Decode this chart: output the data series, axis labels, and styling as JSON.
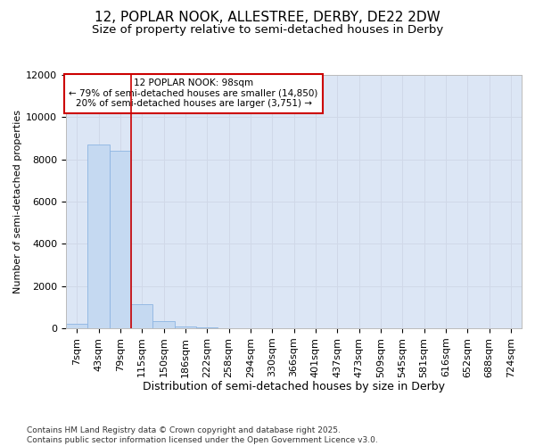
{
  "title1": "12, POPLAR NOOK, ALLESTREE, DERBY, DE22 2DW",
  "title2": "Size of property relative to semi-detached houses in Derby",
  "xlabel": "Distribution of semi-detached houses by size in Derby",
  "ylabel": "Number of semi-detached properties",
  "categories": [
    "7sqm",
    "43sqm",
    "79sqm",
    "115sqm",
    "150sqm",
    "186sqm",
    "222sqm",
    "258sqm",
    "294sqm",
    "330sqm",
    "366sqm",
    "401sqm",
    "437sqm",
    "473sqm",
    "509sqm",
    "545sqm",
    "581sqm",
    "616sqm",
    "652sqm",
    "688sqm",
    "724sqm"
  ],
  "values": [
    200,
    8700,
    8400,
    1150,
    350,
    100,
    50,
    0,
    0,
    0,
    0,
    0,
    0,
    0,
    0,
    0,
    0,
    0,
    0,
    0,
    0
  ],
  "bar_color": "#c5d9f1",
  "bar_edge_color": "#8db4e2",
  "property_line_x": 2.5,
  "annotation_text": "12 POPLAR NOOK: 98sqm\n← 79% of semi-detached houses are smaller (14,850)\n20% of semi-detached houses are larger (3,751) →",
  "annotation_box_color": "#ffffff",
  "annotation_box_edge": "#cc0000",
  "vline_color": "#cc0000",
  "ylim": [
    0,
    12000
  ],
  "yticks": [
    0,
    2000,
    4000,
    6000,
    8000,
    10000,
    12000
  ],
  "grid_color": "#d0d8e8",
  "bg_color": "#dce6f5",
  "fig_bg_color": "#ffffff",
  "footer": "Contains HM Land Registry data © Crown copyright and database right 2025.\nContains public sector information licensed under the Open Government Licence v3.0.",
  "title1_fontsize": 11,
  "title2_fontsize": 9.5,
  "xlabel_fontsize": 9,
  "ylabel_fontsize": 8,
  "tick_fontsize": 8,
  "footer_fontsize": 6.5,
  "annotation_fontsize": 7.5
}
